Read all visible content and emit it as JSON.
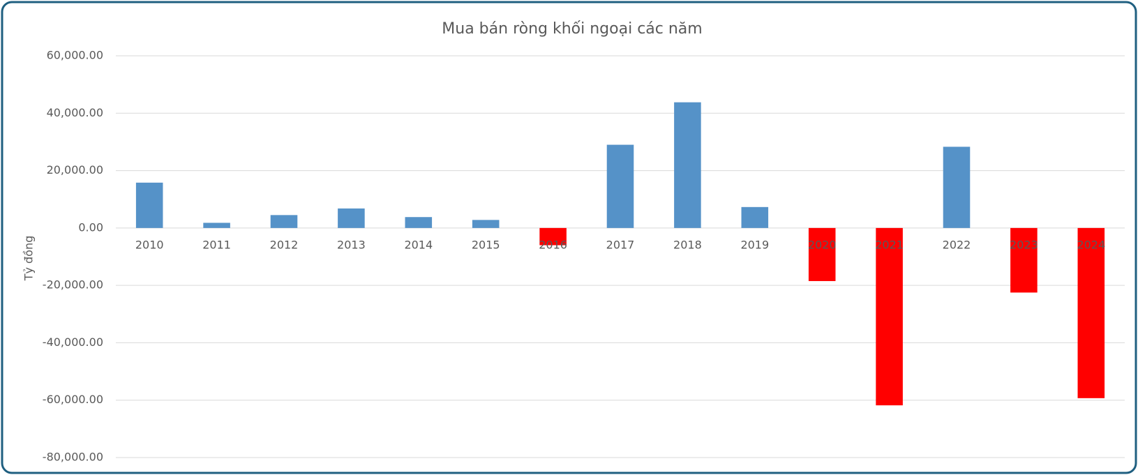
{
  "chart_data": {
    "type": "bar",
    "title": "Mua bán ròng khối ngoại các năm",
    "y_label": "Tỷ đồng",
    "categories": [
      "2010",
      "2011",
      "2012",
      "2013",
      "2014",
      "2015",
      "2016",
      "2017",
      "2018",
      "2019",
      "2020",
      "2021",
      "2022",
      "2023",
      "2024"
    ],
    "values": [
      15800,
      1800,
      4500,
      6800,
      3800,
      2800,
      -6000,
      29000,
      43800,
      7300,
      -18500,
      -61800,
      28300,
      -22500,
      -59300
    ],
    "color": "#5592c8",
    "negative_color": "#ff0000",
    "ylim": [
      -80000,
      60000
    ],
    "yticks": [
      {
        "value": -80000,
        "label": "-80,000.00"
      },
      {
        "value": -60000,
        "label": "-60,000.00"
      },
      {
        "value": -40000,
        "label": "-40,000.00"
      },
      {
        "value": -20000,
        "label": "-20,000.00"
      },
      {
        "value": 0,
        "label": "0.00"
      },
      {
        "value": 20000,
        "label": "20,000.00"
      },
      {
        "value": 40000,
        "label": "40,000.00"
      },
      {
        "value": 60000,
        "label": "60,000.00"
      }
    ],
    "grid": true
  }
}
